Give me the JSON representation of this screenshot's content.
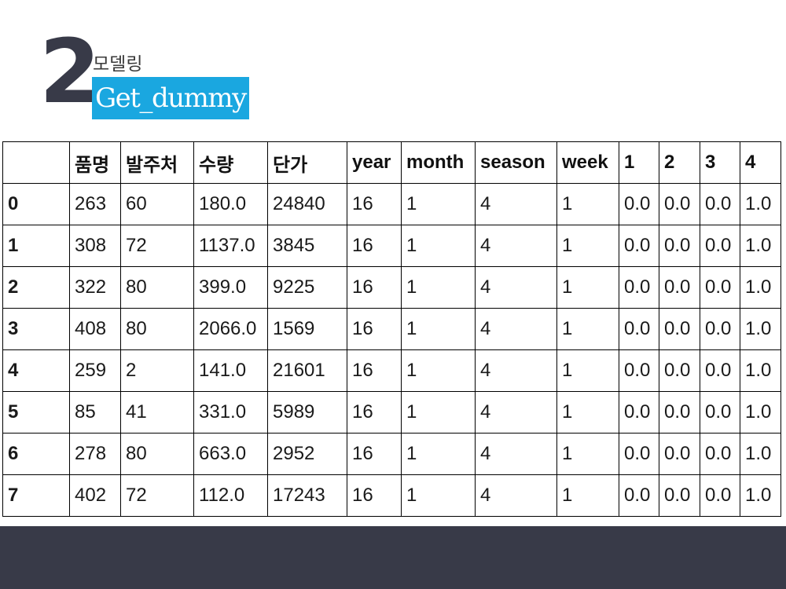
{
  "header": {
    "number": "2",
    "subtitle": "모델링",
    "title": "Get_dummy"
  },
  "table": {
    "columns": [
      "",
      "품명",
      "발주처",
      "수량",
      "단가",
      "year",
      "month",
      "season",
      "week",
      "1",
      "2",
      "3",
      "4"
    ],
    "rows": [
      [
        "0",
        "263",
        "60",
        "180.0",
        "24840",
        "16",
        "1",
        "4",
        "1",
        "0.0",
        "0.0",
        "0.0",
        "1.0"
      ],
      [
        "1",
        "308",
        "72",
        "1137.0",
        "3845",
        "16",
        "1",
        "4",
        "1",
        "0.0",
        "0.0",
        "0.0",
        "1.0"
      ],
      [
        "2",
        "322",
        "80",
        "399.0",
        "9225",
        "16",
        "1",
        "4",
        "1",
        "0.0",
        "0.0",
        "0.0",
        "1.0"
      ],
      [
        "3",
        "408",
        "80",
        "2066.0",
        "1569",
        "16",
        "1",
        "4",
        "1",
        "0.0",
        "0.0",
        "0.0",
        "1.0"
      ],
      [
        "4",
        "259",
        "2",
        "141.0",
        "21601",
        "16",
        "1",
        "4",
        "1",
        "0.0",
        "0.0",
        "0.0",
        "1.0"
      ],
      [
        "5",
        "85",
        "41",
        "331.0",
        "5989",
        "16",
        "1",
        "4",
        "1",
        "0.0",
        "0.0",
        "0.0",
        "1.0"
      ],
      [
        "6",
        "278",
        "80",
        "663.0",
        "2952",
        "16",
        "1",
        "4",
        "1",
        "0.0",
        "0.0",
        "0.0",
        "1.0"
      ],
      [
        "7",
        "402",
        "72",
        "112.0",
        "17243",
        "16",
        "1",
        "4",
        "1",
        "0.0",
        "0.0",
        "0.0",
        "1.0"
      ]
    ]
  },
  "colors": {
    "accent": "#1aa7e0",
    "dark": "#383a48"
  }
}
